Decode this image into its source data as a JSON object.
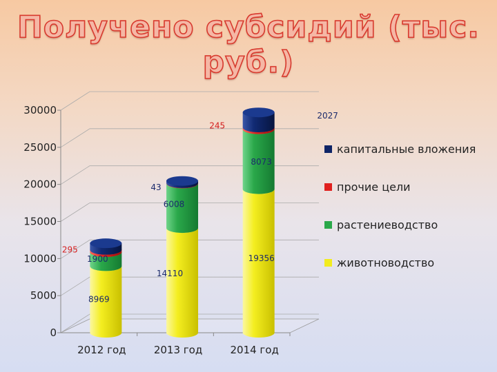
{
  "title": "Получено субсидий (тыс. руб.)",
  "chart_data": {
    "type": "bar",
    "stacked": true,
    "categories": [
      "2012 год",
      "2013 год",
      "2014 год"
    ],
    "series": [
      {
        "name": "животноводство",
        "color": "#f2ec1e",
        "values": [
          8969,
          14110,
          19356
        ]
      },
      {
        "name": "растениеводство",
        "color": "#2aa84a",
        "values": [
          1900,
          6008,
          8073
        ]
      },
      {
        "name": "прочие цели",
        "color": "#e0201e",
        "values": [
          295,
          43,
          245
        ]
      },
      {
        "name": "капитальные вложения",
        "color": "#0e2466",
        "values": [
          895,
          300,
          2027
        ]
      }
    ],
    "data_labels": [
      {
        "text": "8969",
        "series": 0,
        "category": 0,
        "color": "#1b2a6b"
      },
      {
        "text": "1900",
        "series": 1,
        "category": 0,
        "color": "#1b2a6b"
      },
      {
        "text": "295",
        "series": 2,
        "category": 0,
        "color": "#d42020"
      },
      {
        "text": "14110",
        "series": 0,
        "category": 1,
        "color": "#1b2a6b"
      },
      {
        "text": "6008",
        "series": 1,
        "category": 1,
        "color": "#1b2a6b"
      },
      {
        "text": "43",
        "series": 2,
        "category": 1,
        "color": "#1b2a6b"
      },
      {
        "text": "19356",
        "series": 0,
        "category": 2,
        "color": "#1b2a6b"
      },
      {
        "text": "8073",
        "series": 1,
        "category": 2,
        "color": "#1b2a6b"
      },
      {
        "text": "245",
        "series": 2,
        "category": 2,
        "color": "#d42020"
      },
      {
        "text": "2027",
        "series": 3,
        "category": 2,
        "color": "#1b2a6b"
      }
    ],
    "ylim": [
      0,
      30000
    ],
    "yticks": [
      "0",
      "5000",
      "10000",
      "15000",
      "20000",
      "25000",
      "30000"
    ],
    "legend_order": [
      "капитальные вложения",
      "прочие цели",
      "растениеводство",
      "животноводство"
    ],
    "legend_position": "right",
    "grid": true
  }
}
